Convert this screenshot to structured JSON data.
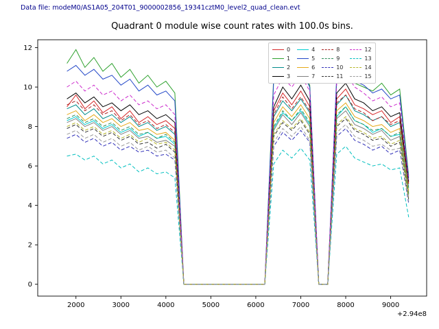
{
  "header": {
    "data_file_label": "Data file: modeM0/AS1A05_204T01_9000002856_19341cztM0_level2_quad_clean.evt"
  },
  "chart_data": {
    "type": "line",
    "title": "Quadrant 0 module wise count rates with 100.0s bins.",
    "xlabel": "",
    "ylabel": "",
    "x_offset_label": "+2.94e8",
    "xlim": [
      1150,
      9800
    ],
    "ylim": [
      -0.6,
      12.4
    ],
    "xticks": [
      2000,
      3000,
      4000,
      5000,
      6000,
      7000,
      8000,
      9000
    ],
    "yticks": [
      0,
      2,
      4,
      6,
      8,
      10,
      12
    ],
    "grid": false,
    "legend_position": "upper right inside, 4 columns",
    "x": [
      1800,
      2000,
      2200,
      2400,
      2600,
      2800,
      3000,
      3200,
      3400,
      3600,
      3800,
      4000,
      4200,
      4400,
      4600,
      4800,
      5000,
      5200,
      5400,
      5600,
      5800,
      6000,
      6200,
      6400,
      6600,
      6800,
      7000,
      7200,
      7400,
      7600,
      7800,
      8000,
      8200,
      8400,
      8600,
      8800,
      9000,
      9200,
      9400
    ],
    "series": [
      {
        "name": "0",
        "color": "#d62728",
        "style": "solid",
        "values": [
          9.0,
          9.6,
          8.9,
          9.3,
          8.7,
          9.0,
          8.4,
          8.8,
          8.2,
          8.5,
          8.1,
          8.3,
          7.9,
          0,
          0,
          0,
          0,
          0,
          0,
          0,
          0,
          0,
          0,
          8.8,
          9.7,
          9.1,
          9.8,
          9.0,
          0,
          0,
          9.4,
          9.9,
          9.1,
          8.9,
          8.6,
          8.8,
          8.2,
          8.5,
          5.1
        ]
      },
      {
        "name": "1",
        "color": "#2ca02c",
        "style": "solid",
        "values": [
          11.2,
          11.9,
          11.0,
          11.5,
          10.8,
          11.2,
          10.5,
          10.9,
          10.2,
          10.6,
          10.0,
          10.3,
          9.7,
          0,
          0,
          0,
          0,
          0,
          0,
          0,
          0,
          0,
          0,
          10.6,
          11.0,
          10.4,
          10.9,
          10.1,
          0,
          0,
          10.4,
          10.9,
          10.2,
          10.0,
          9.8,
          10.2,
          9.6,
          9.9,
          5.5
        ]
      },
      {
        "name": "2",
        "color": "#008b8b",
        "style": "solid",
        "values": [
          8.9,
          9.1,
          8.6,
          8.9,
          8.4,
          8.6,
          8.2,
          8.5,
          8.0,
          8.2,
          7.8,
          8.0,
          7.6,
          0,
          0,
          0,
          0,
          0,
          0,
          0,
          0,
          0,
          0,
          8.5,
          9.3,
          8.8,
          9.4,
          8.7,
          0,
          0,
          9.1,
          9.6,
          8.8,
          8.6,
          8.3,
          8.5,
          8.0,
          8.2,
          4.9
        ]
      },
      {
        "name": "3",
        "color": "#000000",
        "style": "solid",
        "values": [
          9.4,
          9.7,
          9.2,
          9.5,
          9.0,
          9.2,
          8.8,
          9.1,
          8.6,
          8.8,
          8.4,
          8.6,
          8.2,
          0,
          0,
          0,
          0,
          0,
          0,
          0,
          0,
          0,
          0,
          9.0,
          10.0,
          9.4,
          10.1,
          9.3,
          0,
          0,
          9.7,
          10.2,
          9.4,
          9.2,
          8.8,
          9.0,
          8.5,
          8.7,
          5.2
        ]
      },
      {
        "name": "4",
        "color": "#00ced1",
        "style": "solid",
        "values": [
          8.3,
          8.5,
          8.1,
          8.3,
          7.9,
          8.1,
          7.7,
          7.9,
          7.5,
          7.7,
          7.4,
          7.5,
          7.1,
          0,
          0,
          0,
          0,
          0,
          0,
          0,
          0,
          0,
          0,
          7.9,
          8.7,
          8.3,
          8.8,
          8.1,
          0,
          0,
          8.5,
          9.0,
          8.3,
          8.1,
          7.7,
          7.9,
          7.5,
          7.6,
          4.6
        ]
      },
      {
        "name": "5",
        "color": "#2146c7",
        "style": "solid",
        "values": [
          10.8,
          11.1,
          10.6,
          10.9,
          10.4,
          10.6,
          10.1,
          10.4,
          9.8,
          10.1,
          9.6,
          9.8,
          9.3,
          0,
          0,
          0,
          0,
          0,
          0,
          0,
          0,
          0,
          0,
          10.4,
          11.3,
          10.7,
          10.9,
          10.0,
          0,
          0,
          10.6,
          11.0,
          10.3,
          10.1,
          9.7,
          9.9,
          9.4,
          9.6,
          5.4
        ]
      },
      {
        "name": "6",
        "color": "#e6a817",
        "style": "solid",
        "values": [
          8.6,
          8.8,
          8.3,
          8.6,
          8.2,
          8.4,
          8.0,
          8.2,
          7.8,
          7.9,
          7.6,
          7.7,
          7.3,
          0,
          0,
          0,
          0,
          0,
          0,
          0,
          0,
          0,
          0,
          8.2,
          9.0,
          8.5,
          9.1,
          8.4,
          0,
          0,
          8.8,
          9.2,
          8.5,
          8.3,
          8.0,
          8.1,
          7.7,
          7.9,
          4.7
        ]
      },
      {
        "name": "7",
        "color": "#7f7f7f",
        "style": "solid",
        "values": [
          8.2,
          8.4,
          8.0,
          8.2,
          7.8,
          8.0,
          7.6,
          7.8,
          7.4,
          7.5,
          7.2,
          7.3,
          7.0,
          0,
          0,
          0,
          0,
          0,
          0,
          0,
          0,
          0,
          0,
          7.8,
          8.6,
          8.1,
          8.7,
          8.0,
          0,
          0,
          8.4,
          8.8,
          8.1,
          7.9,
          7.6,
          7.8,
          7.3,
          7.5,
          4.5
        ]
      },
      {
        "name": "8",
        "color": "#a81e1e",
        "style": "dashed",
        "values": [
          9.1,
          9.3,
          8.8,
          9.1,
          8.6,
          8.8,
          8.3,
          8.6,
          8.1,
          8.3,
          7.9,
          8.1,
          7.7,
          0,
          0,
          0,
          0,
          0,
          0,
          0,
          0,
          0,
          0,
          8.6,
          9.5,
          8.9,
          9.5,
          8.8,
          0,
          0,
          9.2,
          9.6,
          8.9,
          8.7,
          8.3,
          8.5,
          8.1,
          8.3,
          5.0
        ]
      },
      {
        "name": "9",
        "color": "#2e8b57",
        "style": "dashed",
        "values": [
          8.4,
          8.6,
          8.2,
          8.4,
          8.0,
          8.2,
          7.8,
          8.0,
          7.6,
          7.7,
          7.4,
          7.6,
          7.2,
          0,
          0,
          0,
          0,
          0,
          0,
          0,
          0,
          0,
          0,
          8.0,
          8.8,
          8.3,
          8.9,
          8.2,
          0,
          0,
          8.6,
          9.0,
          8.3,
          8.1,
          7.8,
          7.9,
          7.5,
          7.7,
          4.6
        ]
      },
      {
        "name": "10",
        "color": "#2e2eb8",
        "style": "dashed",
        "values": [
          7.4,
          7.6,
          7.2,
          7.4,
          7.0,
          7.2,
          6.8,
          7.0,
          6.7,
          6.8,
          6.5,
          6.6,
          6.3,
          0,
          0,
          0,
          0,
          0,
          0,
          0,
          0,
          0,
          0,
          7.0,
          7.7,
          7.3,
          7.8,
          7.2,
          0,
          0,
          7.5,
          7.9,
          7.3,
          7.1,
          6.8,
          7.0,
          6.6,
          6.8,
          4.1
        ]
      },
      {
        "name": "11",
        "color": "#303030",
        "style": "dashed",
        "values": [
          7.9,
          8.1,
          7.7,
          7.9,
          7.5,
          7.7,
          7.3,
          7.5,
          7.1,
          7.2,
          6.9,
          7.1,
          6.7,
          0,
          0,
          0,
          0,
          0,
          0,
          0,
          0,
          0,
          0,
          7.5,
          8.2,
          7.8,
          8.3,
          7.6,
          0,
          0,
          8.0,
          8.4,
          7.8,
          7.6,
          7.3,
          7.4,
          7.0,
          7.2,
          4.3
        ]
      },
      {
        "name": "12",
        "color": "#cc29cc",
        "style": "dashed",
        "values": [
          10.0,
          10.3,
          9.8,
          10.1,
          9.6,
          9.8,
          9.3,
          9.6,
          9.1,
          9.3,
          8.9,
          9.1,
          8.6,
          0,
          0,
          0,
          0,
          0,
          0,
          0,
          0,
          0,
          0,
          9.6,
          10.5,
          10.0,
          10.6,
          9.8,
          0,
          0,
          10.2,
          10.7,
          10.0,
          9.7,
          9.3,
          9.5,
          9.0,
          9.2,
          5.3
        ]
      },
      {
        "name": "13",
        "color": "#00bfbf",
        "style": "dashed",
        "values": [
          6.5,
          6.6,
          6.3,
          6.5,
          6.1,
          6.3,
          5.9,
          6.1,
          5.7,
          5.9,
          5.6,
          5.7,
          5.4,
          0,
          0,
          0,
          0,
          0,
          0,
          0,
          0,
          0,
          0,
          6.1,
          6.8,
          6.4,
          6.9,
          6.3,
          0,
          0,
          6.6,
          7.0,
          6.4,
          6.2,
          6.0,
          6.1,
          5.8,
          5.9,
          3.4
        ]
      },
      {
        "name": "14",
        "color": "#b5b528",
        "style": "dashed",
        "values": [
          8.0,
          8.2,
          7.8,
          8.0,
          7.6,
          7.8,
          7.4,
          7.6,
          7.2,
          7.4,
          7.1,
          7.2,
          6.8,
          0,
          0,
          0,
          0,
          0,
          0,
          0,
          0,
          0,
          0,
          7.6,
          8.3,
          7.9,
          8.4,
          7.7,
          0,
          0,
          8.1,
          8.5,
          7.9,
          7.7,
          7.4,
          7.5,
          7.1,
          7.3,
          4.4
        ]
      },
      {
        "name": "15",
        "color": "#9a9a9a",
        "style": "dashed",
        "values": [
          7.6,
          7.8,
          7.4,
          7.6,
          7.2,
          7.4,
          7.0,
          7.2,
          6.8,
          7.0,
          6.7,
          6.8,
          6.4,
          0,
          0,
          0,
          0,
          0,
          0,
          0,
          0,
          0,
          0,
          7.2,
          7.9,
          7.5,
          8.0,
          7.3,
          0,
          0,
          7.7,
          8.1,
          7.5,
          7.3,
          7.0,
          7.1,
          6.8,
          6.9,
          4.2
        ]
      }
    ]
  }
}
